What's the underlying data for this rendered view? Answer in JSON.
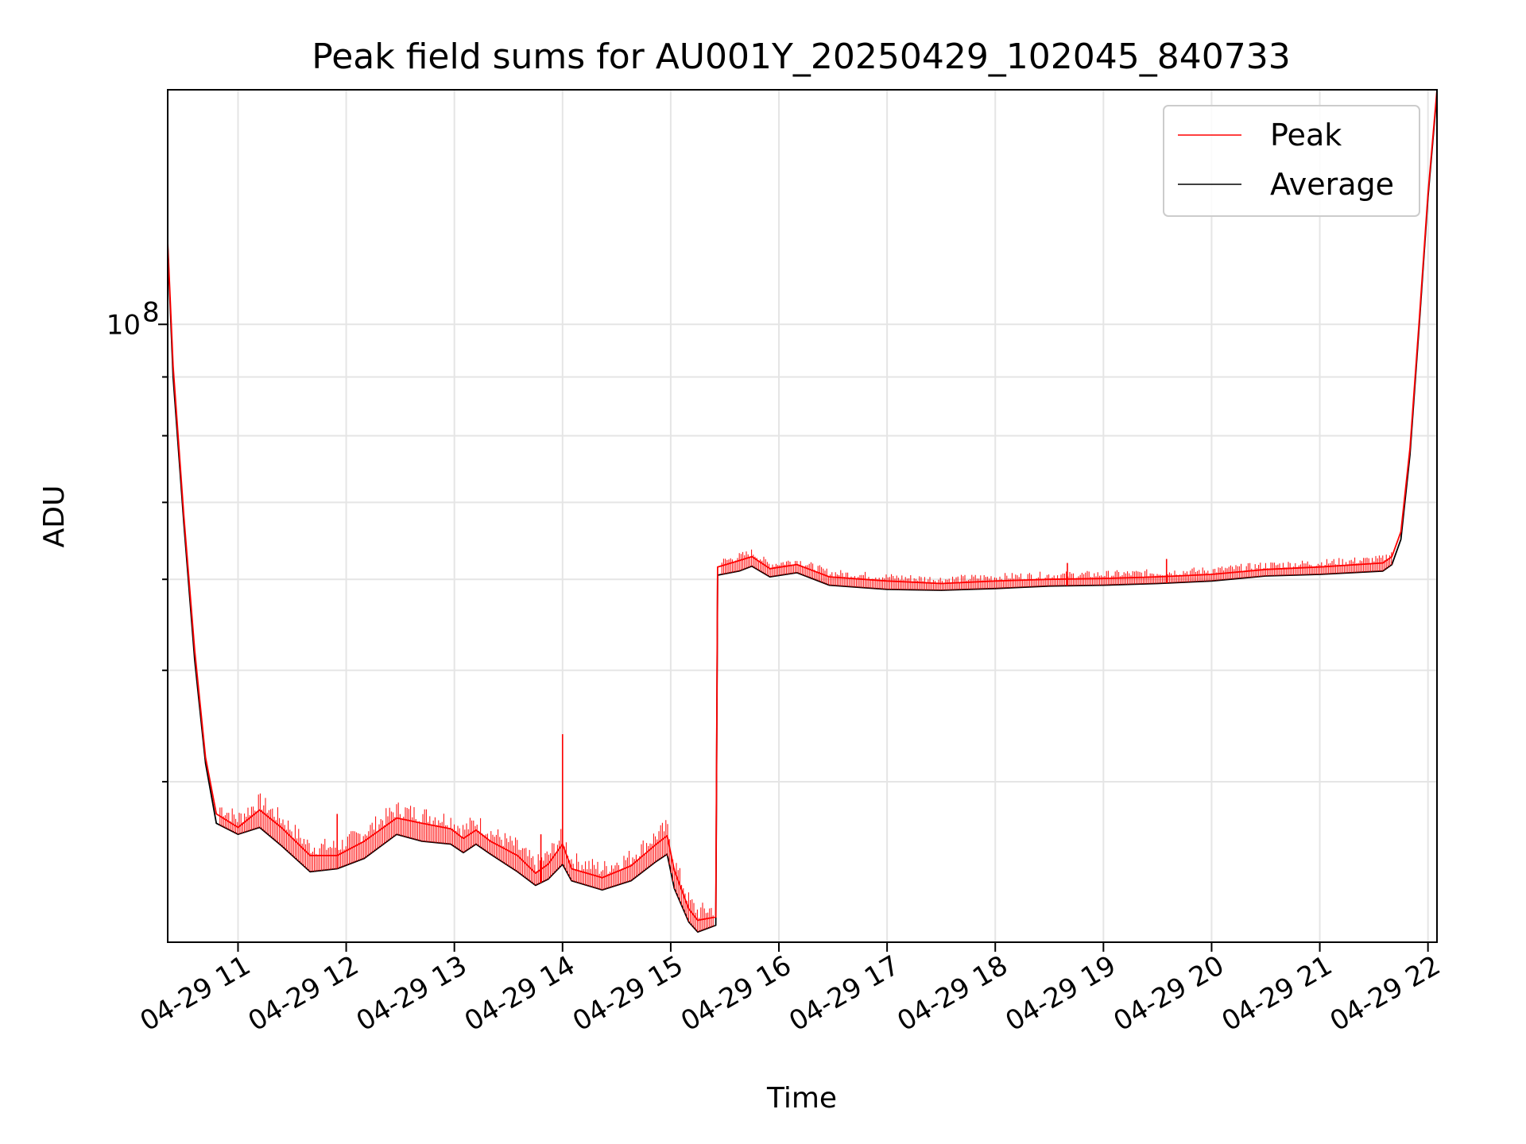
{
  "chart_data": {
    "type": "line",
    "title": "Peak field sums for AU001Y_20250429_102045_840733",
    "xlabel": "Time",
    "ylabel": "ADU",
    "y_scale": "log",
    "ylim": [
      29000000,
      160000000
    ],
    "xlim": [
      "04-29 10:21",
      "04-29 22:05"
    ],
    "x_ticks": [
      "04-29 11",
      "04-29 12",
      "04-29 13",
      "04-29 14",
      "04-29 15",
      "04-29 16",
      "04-29 17",
      "04-29 18",
      "04-29 19",
      "04-29 20",
      "04-29 21",
      "04-29 22"
    ],
    "y_ticks": [
      {
        "label_base": "10",
        "label_exp": "8",
        "value": 100000000
      }
    ],
    "y_minor_ticks": [
      40000000,
      50000000,
      60000000,
      70000000,
      80000000,
      90000000
    ],
    "grid": true,
    "legend_position": "top-right",
    "series": [
      {
        "name": "Peak",
        "color": "#ff0000",
        "points": [
          [
            "04-29 10:21",
            118000000
          ],
          [
            "04-29 10:24",
            92000000
          ],
          [
            "04-29 10:30",
            68000000
          ],
          [
            "04-29 10:36",
            52000000
          ],
          [
            "04-29 10:42",
            42000000
          ],
          [
            "04-29 10:48",
            37500000
          ],
          [
            "04-29 11:00",
            36500000
          ],
          [
            "04-29 11:12",
            37800000
          ],
          [
            "04-29 11:24",
            36500000
          ],
          [
            "04-29 11:40",
            34500000
          ],
          [
            "04-29 11:55",
            34500000
          ],
          [
            "04-29 12:10",
            35500000
          ],
          [
            "04-29 12:28",
            37200000
          ],
          [
            "04-29 12:42",
            36800000
          ],
          [
            "04-29 12:58",
            36400000
          ],
          [
            "04-29 13:05",
            35700000
          ],
          [
            "04-29 13:12",
            36300000
          ],
          [
            "04-29 13:20",
            35500000
          ],
          [
            "04-29 13:35",
            34500000
          ],
          [
            "04-29 13:45",
            33300000
          ],
          [
            "04-29 13:52",
            33900000
          ],
          [
            "04-29 14:00",
            35300000
          ],
          [
            "04-29 14:05",
            33600000
          ],
          [
            "04-29 14:22",
            33000000
          ],
          [
            "04-29 14:38",
            33800000
          ],
          [
            "04-29 14:52",
            35300000
          ],
          [
            "04-29 14:58",
            35900000
          ],
          [
            "04-29 15:02",
            33500000
          ],
          [
            "04-29 15:10",
            31000000
          ],
          [
            "04-29 15:15",
            30300000
          ],
          [
            "04-29 15:25",
            30500000
          ],
          [
            "04-29 15:26",
            61500000
          ],
          [
            "04-29 15:38",
            62300000
          ],
          [
            "04-29 15:45",
            62800000
          ],
          [
            "04-29 15:55",
            61300000
          ],
          [
            "04-29 16:10",
            61800000
          ],
          [
            "04-29 16:28",
            60300000
          ],
          [
            "04-29 17:00",
            59800000
          ],
          [
            "04-29 17:30",
            59500000
          ],
          [
            "04-29 18:00",
            59800000
          ],
          [
            "04-29 18:30",
            60000000
          ],
          [
            "04-29 19:00",
            60100000
          ],
          [
            "04-29 19:30",
            60300000
          ],
          [
            "04-29 20:00",
            60600000
          ],
          [
            "04-29 20:30",
            61200000
          ],
          [
            "04-29 21:00",
            61500000
          ],
          [
            "04-29 21:35",
            62000000
          ],
          [
            "04-29 21:40",
            62800000
          ],
          [
            "04-29 21:45",
            66000000
          ],
          [
            "04-29 21:50",
            78000000
          ],
          [
            "04-29 21:55",
            100000000
          ],
          [
            "04-29 22:00",
            130000000
          ],
          [
            "04-29 22:05",
            160000000
          ]
        ]
      },
      {
        "name": "Average",
        "color": "#000000",
        "points": [
          [
            "04-29 10:21",
            117000000
          ],
          [
            "04-29 10:24",
            90000000
          ],
          [
            "04-29 10:30",
            67000000
          ],
          [
            "04-29 10:36",
            51000000
          ],
          [
            "04-29 10:42",
            41500000
          ],
          [
            "04-29 10:48",
            36800000
          ],
          [
            "04-29 11:00",
            36000000
          ],
          [
            "04-29 11:12",
            36500000
          ],
          [
            "04-29 11:24",
            35200000
          ],
          [
            "04-29 11:40",
            33400000
          ],
          [
            "04-29 11:55",
            33600000
          ],
          [
            "04-29 12:10",
            34300000
          ],
          [
            "04-29 12:28",
            36000000
          ],
          [
            "04-29 12:42",
            35500000
          ],
          [
            "04-29 12:58",
            35300000
          ],
          [
            "04-29 13:05",
            34700000
          ],
          [
            "04-29 13:12",
            35300000
          ],
          [
            "04-29 13:20",
            34600000
          ],
          [
            "04-29 13:35",
            33400000
          ],
          [
            "04-29 13:45",
            32500000
          ],
          [
            "04-29 13:52",
            32900000
          ],
          [
            "04-29 14:00",
            33900000
          ],
          [
            "04-29 14:05",
            32800000
          ],
          [
            "04-29 14:22",
            32200000
          ],
          [
            "04-29 14:38",
            32800000
          ],
          [
            "04-29 14:52",
            34100000
          ],
          [
            "04-29 14:58",
            34600000
          ],
          [
            "04-29 15:02",
            32300000
          ],
          [
            "04-29 15:10",
            30200000
          ],
          [
            "04-29 15:15",
            29600000
          ],
          [
            "04-29 15:25",
            30000000
          ],
          [
            "04-29 15:26",
            60500000
          ],
          [
            "04-29 15:38",
            61000000
          ],
          [
            "04-29 15:45",
            61600000
          ],
          [
            "04-29 15:55",
            60300000
          ],
          [
            "04-29 16:10",
            60800000
          ],
          [
            "04-29 16:28",
            59300000
          ],
          [
            "04-29 17:00",
            58800000
          ],
          [
            "04-29 17:30",
            58700000
          ],
          [
            "04-29 18:00",
            58900000
          ],
          [
            "04-29 18:30",
            59200000
          ],
          [
            "04-29 19:00",
            59300000
          ],
          [
            "04-29 19:30",
            59500000
          ],
          [
            "04-29 20:00",
            59800000
          ],
          [
            "04-29 20:30",
            60400000
          ],
          [
            "04-29 21:00",
            60600000
          ],
          [
            "04-29 21:35",
            61000000
          ],
          [
            "04-29 21:40",
            61800000
          ],
          [
            "04-29 21:45",
            65000000
          ],
          [
            "04-29 21:50",
            77000000
          ],
          [
            "04-29 21:55",
            99000000
          ],
          [
            "04-29 22:00",
            129000000
          ],
          [
            "04-29 22:05",
            159000000
          ]
        ]
      }
    ],
    "annotated_spikes": [
      {
        "series": "Peak",
        "x": "04-29 14:00",
        "value": 44000000
      },
      {
        "series": "Peak",
        "x": "04-29 13:48",
        "value": 36000000
      },
      {
        "series": "Peak",
        "x": "04-29 11:55",
        "value": 37500000
      },
      {
        "series": "Peak",
        "x": "04-29 18:40",
        "value": 62000000
      },
      {
        "series": "Peak",
        "x": "04-29 19:35",
        "value": 62500000
      }
    ]
  }
}
